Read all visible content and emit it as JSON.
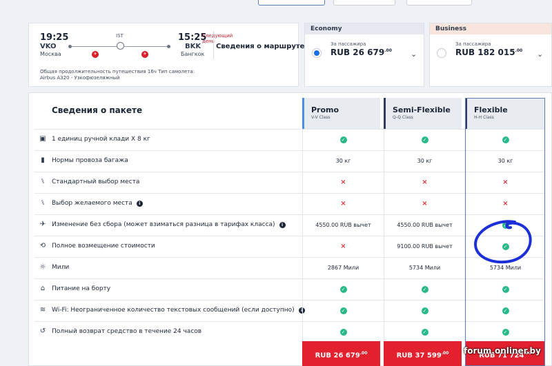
{
  "flight": {
    "dep_time": "19:25",
    "dep_code": "VKO",
    "dep_city": "Москва",
    "arr_time": "15:25",
    "arr_code": "BKK",
    "arr_city": "Бангкок",
    "stop_code": "IST",
    "next_day": "Следующий день",
    "route_link": "Сведения о маршруте",
    "meta": "Общая продолжительность путешествия 16ч  Тип самолета: Airbus A320 - Узкофюзеляжный"
  },
  "fares": {
    "economy": {
      "title": "Economy",
      "per": "За пассажира",
      "price": "RUB 26 679",
      "cents": ".00",
      "selected": true
    },
    "business": {
      "title": "Business",
      "per": "За пассажира",
      "price": "RUB 182 015",
      "cents": ".00",
      "selected": false
    }
  },
  "table": {
    "title": "Сведения о пакете",
    "columns": [
      {
        "name": "Promo",
        "class": "V-V Class"
      },
      {
        "name": "Semi-Flexible",
        "class": "Q-Q Class"
      },
      {
        "name": "Flexible",
        "class": "H-H Class"
      }
    ],
    "rows": [
      {
        "icon": "bag-icon",
        "label": "1 единиц ручной клади X 8 кг",
        "info": false,
        "cells": [
          "check",
          "check",
          "check"
        ]
      },
      {
        "icon": "luggage-icon",
        "label": "Нормы провоза багажа",
        "info": false,
        "cells": [
          "30 кг",
          "30 кг",
          "30 кг"
        ]
      },
      {
        "icon": "seat-icon",
        "label": "Стандартный выбор места",
        "info": false,
        "cells": [
          "cross",
          "cross",
          "cross"
        ]
      },
      {
        "icon": "seat-pick-icon",
        "label": "Выбор желаемого места",
        "info": true,
        "cells": [
          "cross",
          "cross",
          "cross"
        ]
      },
      {
        "icon": "plane-change-icon",
        "label": "Изменение без сбора (может взиматься разница в тарифах класса)",
        "info": true,
        "cells": [
          "4550.00 RUB вычет",
          "4550.00 RUB вычет",
          "check"
        ]
      },
      {
        "icon": "refund-icon",
        "label": "Полное возмещение стоимости",
        "info": false,
        "cells": [
          "cross",
          "9100.00 RUB вычет",
          "check"
        ]
      },
      {
        "icon": "miles-icon",
        "label": "Мили",
        "info": false,
        "cells": [
          "2867 Мили",
          "5734 Мили",
          "5734 Мили"
        ]
      },
      {
        "icon": "meal-icon",
        "label": "Питание на борту",
        "info": false,
        "cells": [
          "check",
          "check",
          "check"
        ]
      },
      {
        "icon": "wifi-icon",
        "label": "Wi-Fi: Неограниченное количество текстовых сообщений (если доступно)",
        "info": true,
        "cells": [
          "check",
          "check",
          "check"
        ]
      },
      {
        "icon": "refund-24h-icon",
        "label": "Полный возврат средство в течение 24 часов",
        "info": false,
        "cells": [
          "check",
          "check",
          "check"
        ]
      }
    ],
    "prices": [
      {
        "amount": "RUB 26 679",
        "cents": ".00"
      },
      {
        "amount": "RUB 37 599",
        "cents": ".00"
      },
      {
        "amount": "RUB 71 724",
        "cents": ".00"
      }
    ]
  },
  "watermark": "forum.onliner.by",
  "colors": {
    "accent": "#1a6fe8",
    "check": "#27b98a",
    "cross": "#e0323c",
    "price_bg": "#e3202d",
    "annotation": "#1d2fd6"
  }
}
